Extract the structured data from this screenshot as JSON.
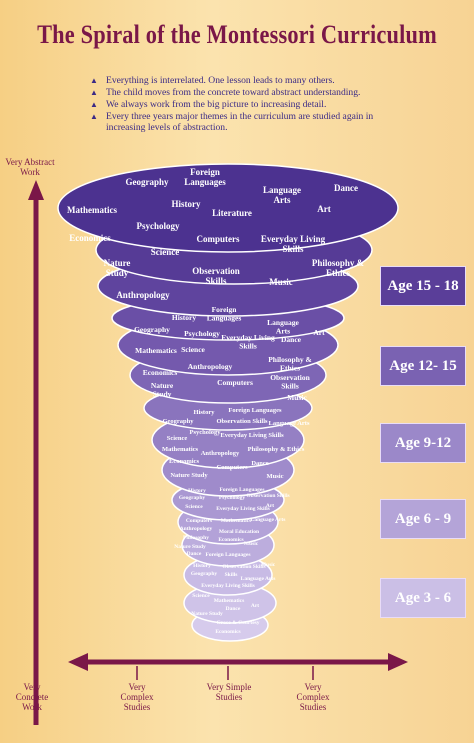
{
  "title": "The Spiral of the Montessori Curriculum",
  "bullets": [
    "Everything is interrelated. One lesson leads to many others.",
    "The child moves from the concrete toward abstract understanding.",
    "We always work from the big picture to increasing detail.",
    "Every three years major themes in the curriculum are studied again in increasing levels of abstraction."
  ],
  "vertical_axis": {
    "top_label": "Very Abstract Work",
    "bottom_label": "Very Concrete Work"
  },
  "horizontal_axis": {
    "labels": [
      "Very Complex Studies",
      "Very Simple Studies",
      "Very Complex Studies"
    ]
  },
  "ages": [
    {
      "label": "Age 15 - 18",
      "color": "#5a3e99"
    },
    {
      "label": "Age 12- 15",
      "color": "#7a62b2"
    },
    {
      "label": "Age 9-12",
      "color": "#9b88c9"
    },
    {
      "label": "Age 6 - 9",
      "color": "#b4a4d8"
    },
    {
      "label": "Age 3 - 6",
      "color": "#cbbfe6"
    }
  ],
  "colors": {
    "accent": "#7a1748",
    "text": "#3b2a86",
    "arrow": "#7a1748"
  },
  "spiral_labels": {
    "age15_18": [
      "Geography",
      "Foreign Languages",
      "History",
      "Language Arts",
      "Dance",
      "Mathematics",
      "Literature",
      "Art",
      "Economics",
      "Psychology",
      "Computers",
      "Everyday Living Skills",
      "Science",
      "Nature Study",
      "Observation Skills",
      "Philosophy & Ethics",
      "Music",
      "Anthropology"
    ],
    "age12_15": [
      "Foreign Languages",
      "History",
      "Language Arts",
      "Geography",
      "Psychology",
      "Everyday Living Skills",
      "Art",
      "Mathematics",
      "Science",
      "Dance",
      "Anthropology",
      "Philosophy & Ethics",
      "Economics",
      "Nature Study",
      "Computers",
      "Observation Skills",
      "Music"
    ],
    "age9_12": [
      "History",
      "Foreign Languages",
      "Geography",
      "Observation Skills",
      "Language Arts",
      "Science",
      "Psychology",
      "Everyday Living Skills",
      "Mathematics",
      "Anthropology",
      "Philosophy & Ethics",
      "Economics",
      "Computers",
      "Dance",
      "Nature Study",
      "Music"
    ],
    "age6_9": [
      "History",
      "Foreign Languages",
      "Geography",
      "Psychology",
      "Observation Skills",
      "Science",
      "Everyday Living Skills",
      "Art",
      "Computers",
      "Mathematics",
      "Language Arts",
      "Anthropology",
      "Moral Education",
      "Philosophy",
      "Economics",
      "Nature Study",
      "Music",
      "Dance"
    ],
    "age3_6": [
      "Foreign Languages",
      "History",
      "Observation Skills",
      "Music",
      "Geography",
      "Skills",
      "Language Arts",
      "Everyday Living Skills",
      "Science",
      "Mathematics",
      "Art",
      "Dance",
      "Nature Study",
      "Grace & Courtesy",
      "Economics"
    ]
  }
}
